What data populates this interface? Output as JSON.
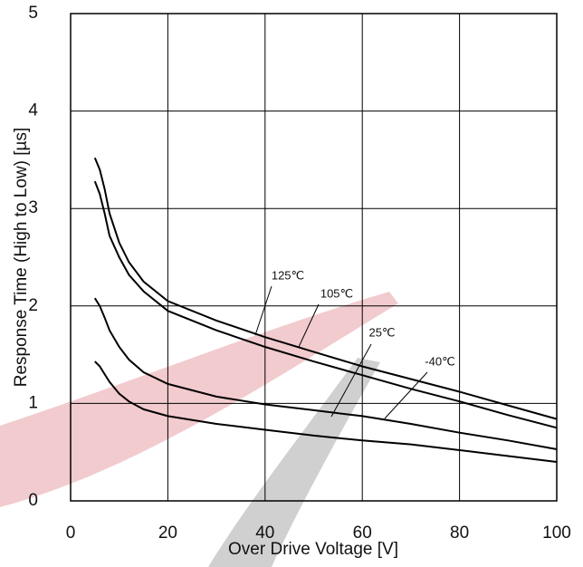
{
  "chart_data": {
    "type": "line",
    "x_label": "Over Drive Voltage [V]",
    "y_label": "Response Time (High to Low) [µs]",
    "x": [
      5,
      6,
      7,
      8,
      10,
      12,
      15,
      20,
      30,
      40,
      50,
      60,
      70,
      80,
      90,
      100
    ],
    "series": [
      {
        "name": "125℃",
        "color": "#000000",
        "values": [
          3.52,
          3.4,
          3.2,
          2.95,
          2.65,
          2.45,
          2.25,
          2.05,
          1.85,
          1.68,
          1.53,
          1.38,
          1.25,
          1.12,
          0.98,
          0.84
        ]
      },
      {
        "name": "105℃",
        "color": "#000000",
        "values": [
          3.28,
          3.15,
          2.95,
          2.72,
          2.5,
          2.32,
          2.15,
          1.95,
          1.75,
          1.58,
          1.43,
          1.29,
          1.15,
          1.02,
          0.88,
          0.75
        ]
      },
      {
        "name": "25℃",
        "color": "#000000",
        "values": [
          2.08,
          2.0,
          1.88,
          1.75,
          1.58,
          1.45,
          1.32,
          1.2,
          1.07,
          0.99,
          0.93,
          0.87,
          0.79,
          0.7,
          0.62,
          0.53
        ]
      },
      {
        "name": "-40℃",
        "color": "#000000",
        "values": [
          1.43,
          1.38,
          1.3,
          1.22,
          1.1,
          1.02,
          0.94,
          0.87,
          0.79,
          0.73,
          0.67,
          0.62,
          0.58,
          0.52,
          0.46,
          0.4
        ]
      }
    ],
    "xlim": [
      0,
      100
    ],
    "xticks": [
      0,
      20,
      40,
      60,
      80,
      100
    ],
    "ylim": [
      0,
      5
    ],
    "yticks": [
      0,
      1,
      2,
      3,
      4,
      5
    ],
    "grid": true
  }
}
